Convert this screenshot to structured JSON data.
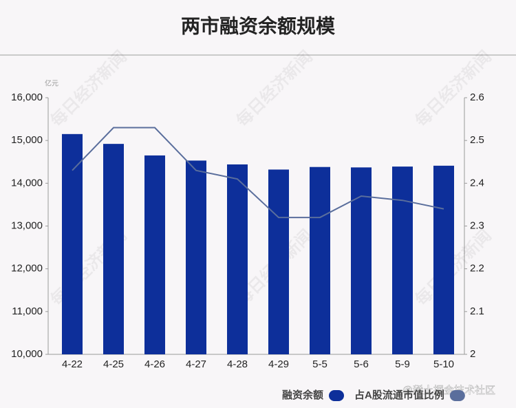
{
  "chart_data": {
    "type": "bar",
    "title": "两市融资余额规模",
    "y_unit": "亿元",
    "watermark": "每日经济新闻",
    "credit": "@稀土掘金技术社区",
    "categories": [
      "4-22",
      "4-25",
      "4-26",
      "4-27",
      "4-28",
      "4-29",
      "5-5",
      "5-6",
      "5-9",
      "5-10"
    ],
    "series": [
      {
        "name": "融资余额",
        "type": "bar",
        "color": "#0d2f9a",
        "values": [
          15150,
          14920,
          14650,
          14530,
          14440,
          14320,
          14380,
          14370,
          14390,
          14410
        ]
      },
      {
        "name": "占A股流通市值比例",
        "type": "line",
        "axis": "y2",
        "color": "#5a6e9c",
        "values": [
          2.43,
          2.53,
          2.53,
          2.43,
          2.41,
          2.32,
          2.32,
          2.37,
          2.36,
          2.34
        ]
      }
    ],
    "ylim": [
      10000,
      16000
    ],
    "yticks": [
      {
        "value": 10000,
        "label": "10,000"
      },
      {
        "value": 11000,
        "label": "11,000"
      },
      {
        "value": 12000,
        "label": "12,000"
      },
      {
        "value": 13000,
        "label": "13,000"
      },
      {
        "value": 14000,
        "label": "14,000"
      },
      {
        "value": 15000,
        "label": "15,000"
      },
      {
        "value": 16000,
        "label": "16,000"
      }
    ],
    "y2lim": [
      2,
      2.6
    ],
    "y2ticks": [
      2,
      2.1,
      2.2,
      2.3,
      2.4,
      2.5,
      2.6
    ],
    "grid": false
  }
}
